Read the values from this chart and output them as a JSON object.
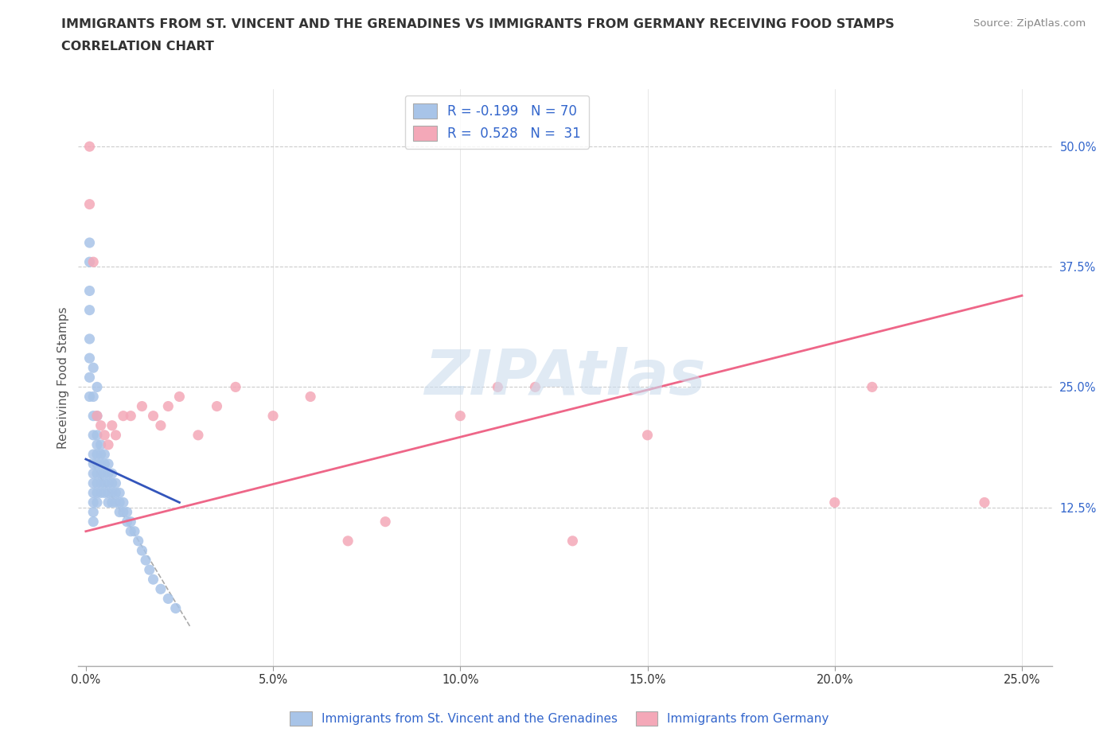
{
  "title": "IMMIGRANTS FROM ST. VINCENT AND THE GRENADINES VS IMMIGRANTS FROM GERMANY RECEIVING FOOD STAMPS",
  "subtitle": "CORRELATION CHART",
  "source": "Source: ZipAtlas.com",
  "ylabel": "Receiving Food Stamps",
  "xlim": [
    -0.002,
    0.258
  ],
  "ylim": [
    -0.04,
    0.56
  ],
  "blue_color": "#A8C4E8",
  "pink_color": "#F4A8B8",
  "blue_line_color": "#3355BB",
  "pink_line_color": "#EE6688",
  "label1": "Immigrants from St. Vincent and the Grenadines",
  "label2": "Immigrants from Germany",
  "watermark": "ZIPAtlas",
  "blue_scatter_x": [
    0.001,
    0.001,
    0.001,
    0.001,
    0.001,
    0.001,
    0.001,
    0.002,
    0.002,
    0.002,
    0.002,
    0.002,
    0.002,
    0.002,
    0.002,
    0.002,
    0.002,
    0.002,
    0.003,
    0.003,
    0.003,
    0.003,
    0.003,
    0.003,
    0.003,
    0.003,
    0.003,
    0.004,
    0.004,
    0.004,
    0.004,
    0.004,
    0.004,
    0.005,
    0.005,
    0.005,
    0.005,
    0.005,
    0.006,
    0.006,
    0.006,
    0.006,
    0.006,
    0.007,
    0.007,
    0.007,
    0.007,
    0.008,
    0.008,
    0.008,
    0.009,
    0.009,
    0.009,
    0.01,
    0.01,
    0.011,
    0.011,
    0.012,
    0.012,
    0.013,
    0.014,
    0.015,
    0.016,
    0.017,
    0.018,
    0.02,
    0.022,
    0.024,
    0.001,
    0.002,
    0.003
  ],
  "blue_scatter_y": [
    0.38,
    0.35,
    0.33,
    0.3,
    0.28,
    0.26,
    0.24,
    0.24,
    0.22,
    0.2,
    0.18,
    0.17,
    0.16,
    0.15,
    0.14,
    0.13,
    0.12,
    0.11,
    0.22,
    0.2,
    0.19,
    0.18,
    0.17,
    0.16,
    0.15,
    0.14,
    0.13,
    0.19,
    0.18,
    0.17,
    0.16,
    0.15,
    0.14,
    0.18,
    0.17,
    0.16,
    0.15,
    0.14,
    0.17,
    0.16,
    0.15,
    0.14,
    0.13,
    0.16,
    0.15,
    0.14,
    0.13,
    0.15,
    0.14,
    0.13,
    0.14,
    0.13,
    0.12,
    0.13,
    0.12,
    0.12,
    0.11,
    0.11,
    0.1,
    0.1,
    0.09,
    0.08,
    0.07,
    0.06,
    0.05,
    0.04,
    0.03,
    0.02,
    0.4,
    0.27,
    0.25
  ],
  "pink_scatter_x": [
    0.001,
    0.001,
    0.002,
    0.003,
    0.004,
    0.005,
    0.006,
    0.007,
    0.008,
    0.01,
    0.012,
    0.015,
    0.018,
    0.02,
    0.022,
    0.025,
    0.03,
    0.035,
    0.04,
    0.05,
    0.06,
    0.07,
    0.08,
    0.1,
    0.11,
    0.12,
    0.13,
    0.15,
    0.2,
    0.21,
    0.24
  ],
  "pink_scatter_y": [
    0.5,
    0.44,
    0.38,
    0.22,
    0.21,
    0.2,
    0.19,
    0.21,
    0.2,
    0.22,
    0.22,
    0.23,
    0.22,
    0.21,
    0.23,
    0.24,
    0.2,
    0.23,
    0.25,
    0.22,
    0.24,
    0.09,
    0.11,
    0.22,
    0.25,
    0.25,
    0.09,
    0.2,
    0.13,
    0.25,
    0.13
  ],
  "blue_line_x0": 0.0,
  "blue_line_x1": 0.025,
  "blue_line_y0": 0.175,
  "blue_line_y1": 0.13,
  "pink_line_x0": 0.0,
  "pink_line_x1": 0.25,
  "pink_line_y0": 0.1,
  "pink_line_y1": 0.345,
  "dash_line_x0": 0.001,
  "dash_line_x1": 0.028,
  "dash_line_y0": 0.175,
  "dash_line_y1": 0.0
}
